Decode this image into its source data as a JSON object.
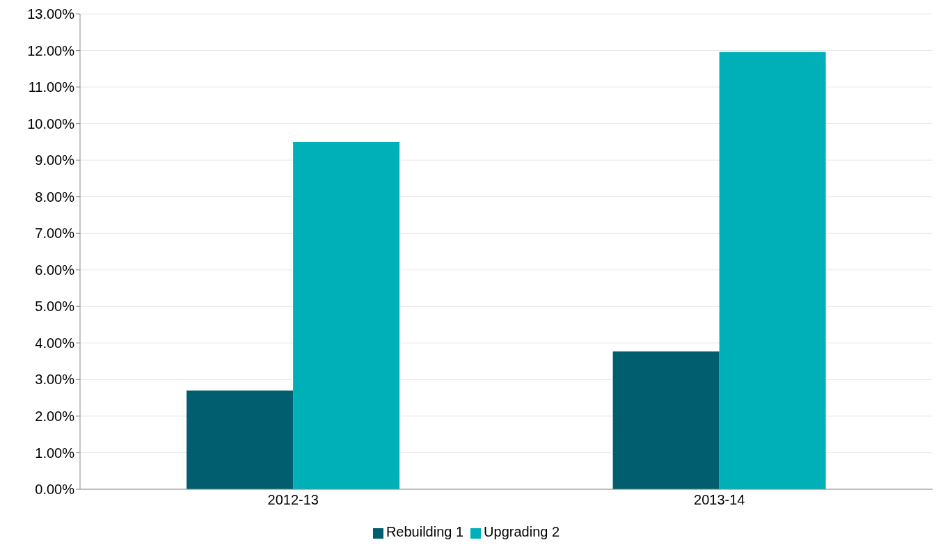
{
  "chart_data": {
    "type": "bar",
    "categories": [
      "2012-13",
      "2013-14"
    ],
    "series": [
      {
        "name": "Rebuilding 1",
        "color": "#005e6e",
        "values": [
          2.7,
          3.77
        ]
      },
      {
        "name": "Upgrading 2",
        "color": "#00b0b9",
        "values": [
          9.5,
          11.96
        ]
      }
    ],
    "ylim": [
      0,
      13
    ],
    "yticks": [
      {
        "value": 0,
        "label": "0.00%"
      },
      {
        "value": 1,
        "label": "1.00%"
      },
      {
        "value": 2,
        "label": "2.00%"
      },
      {
        "value": 3,
        "label": "3.00%"
      },
      {
        "value": 4,
        "label": "4.00%"
      },
      {
        "value": 5,
        "label": "5.00%"
      },
      {
        "value": 6,
        "label": "6.00%"
      },
      {
        "value": 7,
        "label": "7.00%"
      },
      {
        "value": 8,
        "label": "8.00%"
      },
      {
        "value": 9,
        "label": "9.00%"
      },
      {
        "value": 10,
        "label": "10.00%"
      },
      {
        "value": 11,
        "label": "11.00%"
      },
      {
        "value": 12,
        "label": "12.00%"
      },
      {
        "value": 13,
        "label": "13.00%"
      }
    ],
    "grid": "y",
    "legend": "bottom"
  }
}
